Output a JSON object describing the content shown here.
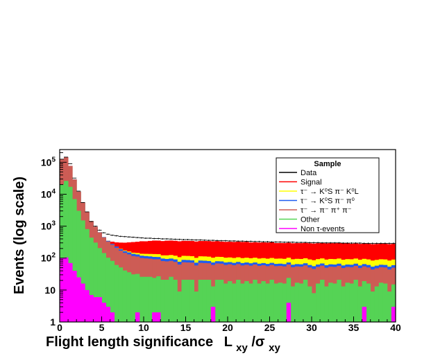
{
  "chart_data": {
    "type": "bar",
    "stacked": true,
    "histogram": true,
    "log_y": true,
    "xlabel_main": "Flight length significance",
    "xlabel_L": "L",
    "xlabel_xy1": "xy",
    "xlabel_slash": "/σ",
    "xlabel_xy2": "xy",
    "ylabel": "Events  (log scale)",
    "xlim": [
      0,
      40
    ],
    "ylim": [
      1,
      250000
    ],
    "x_ticks": [
      0,
      5,
      10,
      15,
      20,
      25,
      30,
      35,
      40
    ],
    "y_ticks": [
      {
        "value": 1,
        "base": "1",
        "exp": ""
      },
      {
        "value": 10,
        "base": "10",
        "exp": ""
      },
      {
        "value": 100,
        "base": "10",
        "exp": "2"
      },
      {
        "value": 1000,
        "base": "10",
        "exp": "3"
      },
      {
        "value": 10000,
        "base": "10",
        "exp": "4"
      },
      {
        "value": 100000,
        "base": "10",
        "exp": "5"
      }
    ],
    "bins": {
      "start": 0,
      "width": 0.5,
      "count": 80
    },
    "series": [
      {
        "name": "Non τ-events",
        "color": "#ff00ff",
        "values": [
          100,
          105,
          70,
          40,
          25,
          16,
          10,
          7,
          6,
          6,
          4,
          3,
          2,
          1,
          1,
          1,
          1,
          1,
          2,
          1,
          1,
          1,
          2,
          2,
          1,
          1,
          1,
          1,
          1,
          1,
          1,
          1,
          1,
          1,
          1,
          1,
          3,
          1,
          1,
          1,
          1,
          1,
          1,
          1,
          1,
          1,
          1,
          1,
          1,
          1,
          1,
          1,
          1,
          1,
          4,
          1,
          1,
          1,
          1,
          1,
          1,
          1,
          1,
          1,
          1,
          1,
          1,
          1,
          1,
          1,
          1,
          1,
          3,
          1,
          1,
          1,
          1,
          1,
          1,
          3
        ]
      },
      {
        "name": "Other",
        "color": "#55d355",
        "values": [
          20000,
          26000,
          17000,
          7000,
          3000,
          1500,
          800,
          430,
          300,
          200,
          140,
          100,
          80,
          60,
          50,
          40,
          35,
          30,
          30,
          25,
          25,
          25,
          22,
          25,
          20,
          20,
          25,
          20,
          8,
          20,
          20,
          20,
          8,
          20,
          20,
          20,
          10,
          20,
          20,
          15,
          18,
          15,
          20,
          15,
          18,
          15,
          20,
          15,
          18,
          15,
          20,
          15,
          16,
          15,
          20,
          12,
          16,
          15,
          20,
          12,
          7,
          15,
          20,
          12,
          16,
          15,
          20,
          12,
          16,
          15,
          20,
          12,
          16,
          15,
          8,
          12,
          16,
          15,
          8,
          12
        ]
      },
      {
        "name": "τ⁻ → π⁻ π⁺ π⁻",
        "color": "#cd5c55",
        "values": [
          105000,
          118000,
          60000,
          22000,
          9000,
          4000,
          2000,
          1000,
          650,
          430,
          300,
          230,
          180,
          150,
          120,
          105,
          95,
          85,
          80,
          75,
          72,
          70,
          68,
          65,
          60,
          58,
          56,
          55,
          54,
          53,
          52,
          51,
          50,
          50,
          49,
          48,
          48,
          47,
          46,
          45,
          45,
          44,
          44,
          43,
          43,
          42,
          42,
          41,
          41,
          40,
          40,
          40,
          40,
          39,
          39,
          39,
          38,
          38,
          38,
          38,
          38,
          37,
          37,
          37,
          37,
          37,
          36,
          36,
          36,
          36,
          36,
          36,
          36,
          35,
          35,
          35,
          35,
          35,
          35,
          35
        ]
      },
      {
        "name": "τ⁻ → K⁰S π⁻ π⁰",
        "color": "#1e5cf0",
        "values": [
          0,
          0,
          0,
          0,
          0,
          0,
          0,
          0,
          5,
          8,
          10,
          15,
          15,
          20,
          20,
          20,
          20,
          20,
          18,
          18,
          18,
          17,
          17,
          16,
          16,
          15,
          15,
          15,
          14,
          14,
          14,
          13,
          13,
          13,
          13,
          12,
          12,
          12,
          12,
          12,
          11,
          11,
          11,
          11,
          11,
          11,
          10,
          10,
          10,
          10,
          10,
          10,
          10,
          10,
          10,
          10,
          10,
          10,
          10,
          10,
          10,
          10,
          10,
          10,
          10,
          10,
          10,
          10,
          10,
          10,
          10,
          10,
          10,
          10,
          10,
          10,
          10,
          10,
          10,
          10
        ]
      },
      {
        "name": "τ⁻ → K⁰S π⁻ K⁰L",
        "color": "#ffff00",
        "values": [
          0,
          0,
          0,
          0,
          0,
          0,
          0,
          0,
          0,
          0,
          0,
          0,
          0,
          0,
          5,
          8,
          10,
          12,
          15,
          18,
          20,
          22,
          25,
          25,
          25,
          28,
          28,
          28,
          30,
          30,
          30,
          30,
          30,
          30,
          30,
          30,
          30,
          30,
          30,
          30,
          30,
          30,
          30,
          30,
          30,
          30,
          30,
          30,
          30,
          30,
          30,
          30,
          30,
          30,
          30,
          30,
          30,
          30,
          30,
          30,
          30,
          30,
          30,
          30,
          30,
          30,
          30,
          30,
          30,
          30,
          30,
          30,
          30,
          30,
          30,
          30,
          30,
          30,
          30,
          30
        ]
      },
      {
        "name": "Signal",
        "color": "#ff0000",
        "values": [
          0,
          0,
          0,
          0,
          0,
          0,
          0,
          0,
          0,
          0,
          0,
          0,
          50,
          80,
          110,
          130,
          150,
          170,
          180,
          200,
          200,
          210,
          220,
          220,
          220,
          230,
          230,
          230,
          230,
          230,
          230,
          230,
          230,
          230,
          230,
          230,
          230,
          230,
          220,
          220,
          220,
          220,
          220,
          220,
          220,
          210,
          210,
          210,
          210,
          210,
          210,
          200,
          200,
          200,
          200,
          200,
          200,
          200,
          200,
          200,
          200,
          200,
          200,
          200,
          200,
          200,
          200,
          200,
          200,
          190,
          190,
          190,
          190,
          190,
          190,
          190,
          190,
          190,
          190,
          190
        ]
      }
    ],
    "data_series": {
      "name": "Data",
      "color": "#000000",
      "values": [
        125000,
        145000,
        90000,
        32000,
        12500,
        5500,
        2800,
        1400,
        1000,
        750,
        620,
        560,
        520,
        500,
        480,
        470,
        460,
        450,
        440,
        430,
        420,
        420,
        410,
        410,
        400,
        400,
        395,
        390,
        385,
        380,
        380,
        375,
        370,
        370,
        365,
        360,
        360,
        355,
        350,
        350,
        345,
        345,
        340,
        340,
        335,
        335,
        330,
        330,
        325,
        325,
        320,
        320,
        320,
        315,
        315,
        315,
        310,
        310,
        310,
        305,
        305,
        305,
        300,
        300,
        300,
        300,
        300,
        295,
        295,
        295,
        295,
        295,
        290,
        290,
        290,
        290,
        290,
        290,
        290,
        290
      ]
    },
    "legend": {
      "title": "Sample",
      "position": "top-right",
      "entries": [
        {
          "label": "Data",
          "color": "#000000"
        },
        {
          "label": "Signal",
          "color": "#ff0000"
        },
        {
          "label": "τ⁻ → K⁰S π⁻ K⁰L",
          "color": "#ffff00"
        },
        {
          "label": "τ⁻ → K⁰S π⁻ π⁰",
          "color": "#1e5cf0"
        },
        {
          "label": "τ⁻ → π⁻ π⁺ π⁻",
          "color": "#cd5c55"
        },
        {
          "label": "Other",
          "color": "#55d355"
        },
        {
          "label": "Non τ-events",
          "color": "#ff00ff"
        }
      ]
    }
  }
}
